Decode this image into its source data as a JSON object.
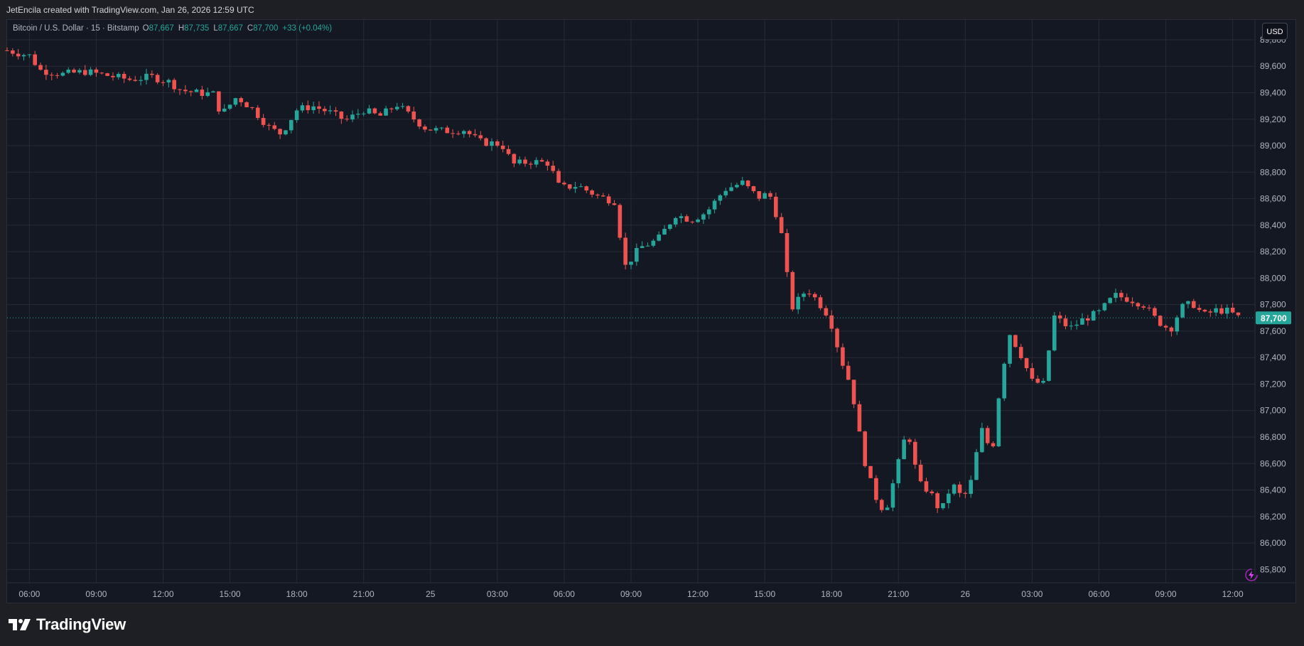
{
  "header": {
    "credit": "JetEncila created with TradingView.com, Jan 26, 2026 12:59 UTC"
  },
  "legend": {
    "symbol": "Bitcoin / U.S. Dollar · 15 · Bitstamp",
    "o_label": "O",
    "o_value": "87,667",
    "h_label": "H",
    "h_value": "87,735",
    "l_label": "L",
    "l_value": "87,667",
    "c_label": "C",
    "c_value": "87,700",
    "change": "+33 (+0.04%)"
  },
  "currency_button": "USD",
  "brand": {
    "name": "TradingView",
    "icon": "tradingview-logo-icon"
  },
  "colors": {
    "up": "#26a69a",
    "down": "#ef5350",
    "background": "#141823",
    "grid": "#262a35",
    "text": "#b2b5be"
  },
  "chart_data": {
    "type": "candlestick",
    "title": "",
    "series_name": "",
    "interval": "15",
    "ylim": [
      85700,
      89950
    ],
    "y_ticks": [
      {
        "value": 85800,
        "label": "85,800"
      },
      {
        "value": 86000,
        "label": "86,000"
      },
      {
        "value": 86200,
        "label": "86,200"
      },
      {
        "value": 86400,
        "label": "86,400"
      },
      {
        "value": 86600,
        "label": "86,600"
      },
      {
        "value": 86800,
        "label": "86,800"
      },
      {
        "value": 87000,
        "label": "87,000"
      },
      {
        "value": 87200,
        "label": "87,200"
      },
      {
        "value": 87400,
        "label": "87,400"
      },
      {
        "value": 87600,
        "label": "87,600"
      },
      {
        "value": 87800,
        "label": "87,800"
      },
      {
        "value": 88000,
        "label": "88,000"
      },
      {
        "value": 88200,
        "label": "88,200"
      },
      {
        "value": 88400,
        "label": "88,400"
      },
      {
        "value": 88600,
        "label": "88,600"
      },
      {
        "value": 88800,
        "label": "88,800"
      },
      {
        "value": 89000,
        "label": "89,000"
      },
      {
        "value": 89200,
        "label": "89,200"
      },
      {
        "value": 89400,
        "label": "89,400"
      },
      {
        "value": 89600,
        "label": "89,600"
      },
      {
        "value": 89800,
        "label": "89,800"
      }
    ],
    "x_ticks": [
      {
        "hour": 6,
        "label": "06:00"
      },
      {
        "hour": 9,
        "label": "09:00"
      },
      {
        "hour": 12,
        "label": "12:00"
      },
      {
        "hour": 15,
        "label": "15:00"
      },
      {
        "hour": 18,
        "label": "18:00"
      },
      {
        "hour": 21,
        "label": "21:00"
      },
      {
        "hour": 24,
        "label": "25"
      },
      {
        "hour": 27,
        "label": "03:00"
      },
      {
        "hour": 30,
        "label": "06:00"
      },
      {
        "hour": 33,
        "label": "09:00"
      },
      {
        "hour": 36,
        "label": "12:00"
      },
      {
        "hour": 39,
        "label": "15:00"
      },
      {
        "hour": 42,
        "label": "18:00"
      },
      {
        "hour": 45,
        "label": "21:00"
      },
      {
        "hour": 48,
        "label": "26"
      },
      {
        "hour": 51,
        "label": "03:00"
      },
      {
        "hour": 54,
        "label": "06:00"
      },
      {
        "hour": 57,
        "label": "09:00"
      },
      {
        "hour": 60,
        "label": "12:00"
      }
    ],
    "x_start_hour": 5,
    "x_end_hour": 61,
    "last_price": {
      "value": 87700,
      "label": "87,700"
    },
    "grid": true,
    "close_path": [
      [
        5.0,
        89720
      ],
      [
        6.0,
        89680
      ],
      [
        6.5,
        89570
      ],
      [
        7.5,
        89540
      ],
      [
        8.5,
        89560
      ],
      [
        9.5,
        89530
      ],
      [
        10.5,
        89500
      ],
      [
        11.5,
        89520
      ],
      [
        12.3,
        89480
      ],
      [
        12.8,
        89420
      ],
      [
        13.5,
        89400
      ],
      [
        14.3,
        89390
      ],
      [
        14.6,
        89230
      ],
      [
        15.3,
        89370
      ],
      [
        16.0,
        89280
      ],
      [
        16.8,
        89130
      ],
      [
        17.3,
        89090
      ],
      [
        18.0,
        89270
      ],
      [
        18.7,
        89300
      ],
      [
        19.5,
        89250
      ],
      [
        20.2,
        89190
      ],
      [
        21.0,
        89270
      ],
      [
        21.7,
        89220
      ],
      [
        22.5,
        89310
      ],
      [
        23.2,
        89210
      ],
      [
        23.8,
        89130
      ],
      [
        24.6,
        89110
      ],
      [
        25.5,
        89120
      ],
      [
        26.2,
        89030
      ],
      [
        27.2,
        89010
      ],
      [
        27.7,
        88860
      ],
      [
        28.5,
        88880
      ],
      [
        29.3,
        88870
      ],
      [
        29.8,
        88680
      ],
      [
        30.6,
        88700
      ],
      [
        31.5,
        88620
      ],
      [
        32.3,
        88580
      ],
      [
        32.7,
        88080
      ],
      [
        33.4,
        88230
      ],
      [
        34.2,
        88290
      ],
      [
        35.0,
        88480
      ],
      [
        35.7,
        88440
      ],
      [
        36.4,
        88500
      ],
      [
        37.2,
        88670
      ],
      [
        38.0,
        88720
      ],
      [
        38.7,
        88610
      ],
      [
        39.2,
        88640
      ],
      [
        39.7,
        88390
      ],
      [
        40.2,
        87770
      ],
      [
        40.9,
        87920
      ],
      [
        41.4,
        87820
      ],
      [
        41.9,
        87710
      ],
      [
        42.4,
        87400
      ],
      [
        42.9,
        87170
      ],
      [
        43.4,
        86670
      ],
      [
        43.9,
        86370
      ],
      [
        44.4,
        86230
      ],
      [
        44.9,
        86540
      ],
      [
        45.4,
        86870
      ],
      [
        45.9,
        86450
      ],
      [
        46.4,
        86390
      ],
      [
        46.9,
        86230
      ],
      [
        47.4,
        86450
      ],
      [
        47.9,
        86330
      ],
      [
        48.3,
        86480
      ],
      [
        48.7,
        86870
      ],
      [
        49.2,
        86680
      ],
      [
        49.6,
        87250
      ],
      [
        50.0,
        87580
      ],
      [
        50.5,
        87420
      ],
      [
        51.0,
        87220
      ],
      [
        51.5,
        87200
      ],
      [
        52.0,
        87710
      ],
      [
        52.7,
        87620
      ],
      [
        53.3,
        87690
      ],
      [
        54.0,
        87740
      ],
      [
        54.7,
        87870
      ],
      [
        55.4,
        87840
      ],
      [
        56.0,
        87800
      ],
      [
        56.6,
        87680
      ],
      [
        57.2,
        87610
      ],
      [
        57.7,
        87780
      ],
      [
        58.2,
        87810
      ],
      [
        58.7,
        87720
      ],
      [
        59.3,
        87760
      ],
      [
        59.8,
        87750
      ],
      [
        60.3,
        87700
      ]
    ]
  }
}
